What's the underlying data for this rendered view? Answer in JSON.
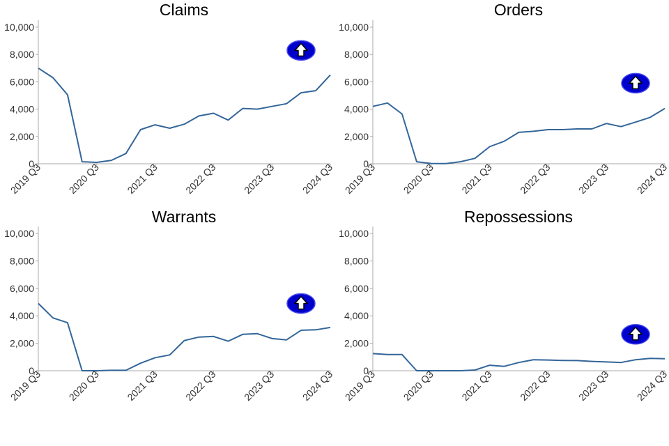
{
  "colors": {
    "line": "#336699",
    "arrow_fill": "#0000cc",
    "arrow_inner": "#ffffff"
  },
  "icons": {
    "trend": "up-arrow-icon"
  },
  "chart_data": [
    {
      "type": "line",
      "title": "Claims",
      "ylim": [
        0,
        10000
      ],
      "yticks": [
        0,
        2000,
        4000,
        6000,
        8000,
        10000
      ],
      "ytick_labels": [
        "0",
        "2,000",
        "4,000",
        "6,000",
        "8,000",
        "10,000"
      ],
      "xtick_labels": [
        "2019 Q3",
        "2020 Q3",
        "2021 Q3",
        "2022 Q3",
        "2023 Q3",
        "2024 Q3"
      ],
      "xtick_index": [
        0,
        4,
        8,
        12,
        16,
        20
      ],
      "x": [
        "2019 Q3",
        "2019 Q4",
        "2020 Q1",
        "2020 Q2",
        "2020 Q3",
        "2020 Q4",
        "2021 Q1",
        "2021 Q2",
        "2021 Q3",
        "2021 Q4",
        "2022 Q1",
        "2022 Q2",
        "2022 Q3",
        "2022 Q4",
        "2023 Q1",
        "2023 Q2",
        "2023 Q3",
        "2023 Q4",
        "2024 Q1",
        "2024 Q2",
        "2024 Q3"
      ],
      "values": [
        7000,
        6300,
        5050,
        150,
        100,
        250,
        750,
        2500,
        2850,
        2600,
        2900,
        3500,
        3700,
        3200,
        4050,
        4000,
        4200,
        4400,
        5200,
        5350,
        6500
      ],
      "trend_icon_level": 8300
    },
    {
      "type": "line",
      "title": "Orders",
      "ylim": [
        0,
        10000
      ],
      "yticks": [
        0,
        2000,
        4000,
        6000,
        8000,
        10000
      ],
      "ytick_labels": [
        "0",
        "2,000",
        "4,000",
        "6,000",
        "8,000",
        "10,000"
      ],
      "xtick_labels": [
        "2019 Q3",
        "2020 Q3",
        "2021 Q3",
        "2022 Q3",
        "2023 Q3",
        "2024 Q3"
      ],
      "xtick_index": [
        0,
        4,
        8,
        12,
        16,
        20
      ],
      "x": [
        "2019 Q3",
        "2019 Q4",
        "2020 Q1",
        "2020 Q2",
        "2020 Q3",
        "2020 Q4",
        "2021 Q1",
        "2021 Q2",
        "2021 Q3",
        "2021 Q4",
        "2022 Q1",
        "2022 Q2",
        "2022 Q3",
        "2022 Q4",
        "2023 Q1",
        "2023 Q2",
        "2023 Q3",
        "2023 Q4",
        "2024 Q1",
        "2024 Q2",
        "2024 Q3"
      ],
      "values": [
        4200,
        4450,
        3650,
        150,
        20,
        10,
        150,
        400,
        1250,
        1650,
        2300,
        2380,
        2500,
        2500,
        2550,
        2550,
        2950,
        2720,
        3050,
        3400,
        4050
      ],
      "trend_icon_level": 5900
    },
    {
      "type": "line",
      "title": "Warrants",
      "ylim": [
        0,
        10000
      ],
      "yticks": [
        0,
        2000,
        4000,
        6000,
        8000,
        10000
      ],
      "ytick_labels": [
        "0",
        "2,000",
        "4,000",
        "6,000",
        "8,000",
        "10,000"
      ],
      "xtick_labels": [
        "2019 Q3",
        "2020 Q3",
        "2021 Q3",
        "2022 Q3",
        "2023 Q3",
        "2024 Q3"
      ],
      "xtick_index": [
        0,
        4,
        8,
        12,
        16,
        20
      ],
      "x": [
        "2019 Q3",
        "2019 Q4",
        "2020 Q1",
        "2020 Q2",
        "2020 Q3",
        "2020 Q4",
        "2021 Q1",
        "2021 Q2",
        "2021 Q3",
        "2021 Q4",
        "2022 Q1",
        "2022 Q2",
        "2022 Q3",
        "2022 Q4",
        "2023 Q1",
        "2023 Q2",
        "2023 Q3",
        "2023 Q4",
        "2024 Q1",
        "2024 Q2",
        "2024 Q3"
      ],
      "values": [
        4900,
        3850,
        3500,
        0,
        0,
        30,
        30,
        550,
        950,
        1150,
        2200,
        2450,
        2500,
        2150,
        2650,
        2700,
        2350,
        2250,
        2950,
        2980,
        3150
      ],
      "trend_icon_level": 4900
    },
    {
      "type": "line",
      "title": "Repossessions",
      "ylim": [
        0,
        10000
      ],
      "yticks": [
        0,
        2000,
        4000,
        6000,
        8000,
        10000
      ],
      "ytick_labels": [
        "0",
        "2,000",
        "4,000",
        "6,000",
        "8,000",
        "10,000"
      ],
      "xtick_labels": [
        "2019 Q3",
        "2020 Q3",
        "2021 Q3",
        "2022 Q3",
        "2023 Q3",
        "2024 Q3"
      ],
      "xtick_index": [
        0,
        4,
        8,
        12,
        16,
        20
      ],
      "x": [
        "2019 Q3",
        "2019 Q4",
        "2020 Q1",
        "2020 Q2",
        "2020 Q3",
        "2020 Q4",
        "2021 Q1",
        "2021 Q2",
        "2021 Q3",
        "2021 Q4",
        "2022 Q1",
        "2022 Q2",
        "2022 Q3",
        "2022 Q4",
        "2023 Q1",
        "2023 Q2",
        "2023 Q3",
        "2023 Q4",
        "2024 Q1",
        "2024 Q2",
        "2024 Q3"
      ],
      "values": [
        1250,
        1180,
        1180,
        0,
        0,
        0,
        0,
        50,
        400,
        320,
        600,
        800,
        780,
        750,
        740,
        680,
        640,
        600,
        800,
        900,
        880
      ],
      "trend_icon_level": 2650
    }
  ]
}
